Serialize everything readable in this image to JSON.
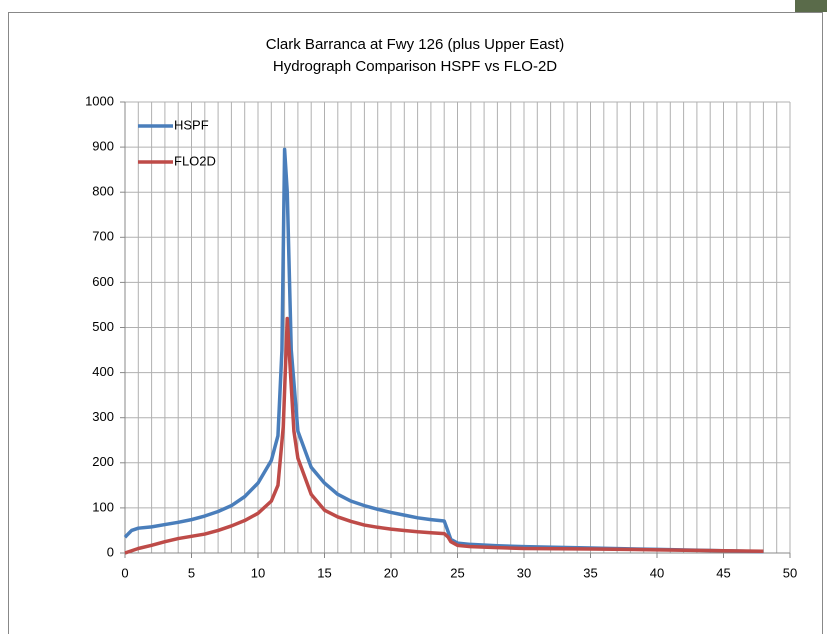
{
  "chart_data": {
    "type": "line",
    "title": "Clark Barranca at Fwy 126  (plus Upper East)",
    "subtitle": "Hydrograph Comparison HSPF vs FLO-2D",
    "legend": "upper left",
    "grid": true,
    "xlim": [
      0,
      50
    ],
    "xticks": [
      0,
      5,
      10,
      15,
      20,
      25,
      30,
      35,
      40,
      45,
      50
    ],
    "x_minor_ticks": [
      0,
      1,
      2,
      3,
      4,
      5,
      6,
      7,
      8,
      9,
      10,
      11,
      12,
      13,
      14,
      15,
      16,
      17,
      18,
      19,
      20,
      21,
      22,
      23,
      24,
      25,
      26,
      27,
      28,
      29,
      30,
      31,
      32,
      33,
      34,
      35,
      36,
      37,
      38,
      39,
      40,
      41,
      42,
      43,
      44,
      45,
      46,
      47,
      48,
      49,
      50
    ],
    "ylim": [
      0,
      1000
    ],
    "yticks": [
      0,
      100,
      200,
      300,
      400,
      500,
      600,
      700,
      800,
      900,
      1000
    ],
    "series": [
      {
        "name": "HSPF",
        "color": "#4a7ebb",
        "x": [
          0,
          0.5,
          1,
          2,
          3,
          4,
          5,
          6,
          7,
          8,
          9,
          10,
          11,
          11.5,
          11.8,
          12,
          12.2,
          12.5,
          13,
          14,
          15,
          16,
          17,
          18,
          19,
          20,
          21,
          22,
          23,
          24,
          24.2,
          24.5,
          25,
          26,
          28,
          30,
          35,
          40,
          45,
          48
        ],
        "values": [
          35,
          50,
          55,
          58,
          63,
          68,
          74,
          82,
          92,
          105,
          125,
          155,
          205,
          260,
          450,
          895,
          800,
          450,
          270,
          190,
          155,
          130,
          115,
          105,
          97,
          90,
          84,
          78,
          74,
          71,
          55,
          30,
          22,
          19,
          16,
          14,
          11,
          8,
          5,
          3
        ]
      },
      {
        "name": "FLO2D",
        "color": "#be4b48",
        "x": [
          0,
          0.5,
          1,
          2,
          3,
          4,
          5,
          6,
          7,
          8,
          9,
          10,
          11,
          11.5,
          11.9,
          12.2,
          12.4,
          12.7,
          13,
          14,
          15,
          16,
          17,
          18,
          19,
          20,
          21,
          22,
          23,
          24,
          24.3,
          24.5,
          25,
          26,
          28,
          30,
          35,
          40,
          45,
          48
        ],
        "values": [
          0,
          5,
          10,
          17,
          25,
          32,
          37,
          42,
          50,
          60,
          72,
          88,
          115,
          150,
          280,
          520,
          420,
          270,
          210,
          130,
          95,
          80,
          70,
          62,
          57,
          53,
          50,
          47,
          45,
          43,
          35,
          25,
          17,
          14,
          12,
          10,
          9,
          7,
          5,
          4
        ]
      }
    ]
  }
}
